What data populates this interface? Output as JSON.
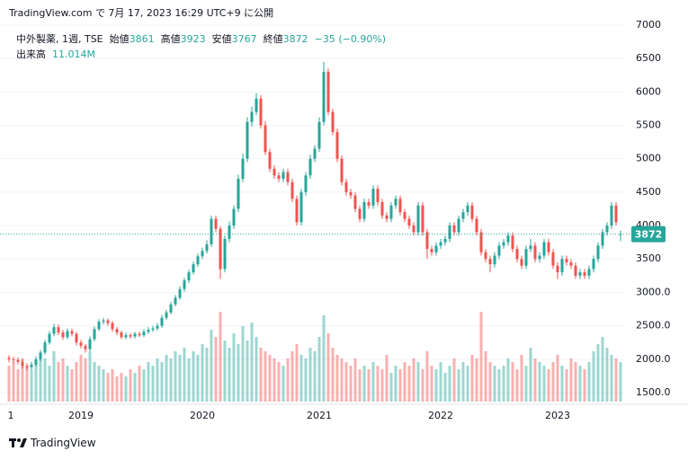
{
  "header": {
    "published": "TradingView.com で 7月 17, 2023 16:29 UTC+9 に公開",
    "symbol": "中外製薬, 1週, TSE",
    "open_label": "始値",
    "high_label": "高値",
    "low_label": "安値",
    "close_label": "終値",
    "change_text": "−35 (−0.90%)",
    "volume_title": "出来高",
    "volume_label": "11.014M",
    "logo": "TradingView"
  },
  "chart_data": {
    "type": "candlestick",
    "categories": [
      "1",
      null,
      null,
      null,
      null,
      null,
      null,
      null,
      null,
      null,
      null,
      null,
      null,
      null,
      null,
      null,
      "2019",
      null,
      null,
      null,
      null,
      null,
      null,
      null,
      null,
      null,
      null,
      null,
      null,
      null,
      null,
      null,
      null,
      null,
      null,
      null,
      null,
      null,
      null,
      null,
      null,
      null,
      null,
      "2020",
      null,
      null,
      null,
      null,
      null,
      null,
      null,
      null,
      null,
      null,
      null,
      null,
      null,
      null,
      null,
      null,
      null,
      null,
      null,
      null,
      null,
      null,
      null,
      null,
      null,
      "2021",
      null,
      null,
      null,
      null,
      null,
      null,
      null,
      null,
      null,
      null,
      null,
      null,
      null,
      null,
      null,
      null,
      null,
      null,
      null,
      null,
      null,
      null,
      null,
      null,
      null,
      null,
      "2022",
      null,
      null,
      null,
      null,
      null,
      null,
      null,
      null,
      null,
      null,
      null,
      null,
      null,
      null,
      null,
      null,
      null,
      null,
      null,
      null,
      null,
      null,
      null,
      null,
      null,
      "2023",
      null,
      null,
      null,
      null,
      null,
      null,
      null,
      null,
      null,
      null,
      null,
      null,
      null,
      null
    ],
    "open": [
      2020,
      2000,
      1990,
      1960,
      1900,
      1880,
      1920,
      2000,
      2100,
      2250,
      2380,
      2480,
      2400,
      2330,
      2420,
      2380,
      2250,
      2200,
      2150,
      2300,
      2450,
      2560,
      2580,
      2540,
      2450,
      2400,
      2330,
      2360,
      2340,
      2380,
      2360,
      2410,
      2440,
      2460,
      2500,
      2620,
      2700,
      2820,
      2920,
      3050,
      3180,
      3300,
      3420,
      3540,
      3620,
      3720,
      4100,
      3950,
      3350,
      3800,
      4000,
      4250,
      4700,
      5000,
      5550,
      5700,
      5900,
      5500,
      5100,
      4850,
      4750,
      4700,
      4800,
      4650,
      4400,
      4050,
      4500,
      4750,
      5000,
      5150,
      5550,
      6300,
      5700,
      5400,
      5000,
      4650,
      4500,
      4450,
      4250,
      4100,
      4350,
      4300,
      4550,
      4350,
      4150,
      4100,
      4300,
      4400,
      4200,
      4100,
      4000,
      3900,
      4300,
      3900,
      3650,
      3600,
      3700,
      3750,
      3800,
      4000,
      3900,
      4100,
      4200,
      4300,
      4100,
      3900,
      3600,
      3500,
      3420,
      3550,
      3700,
      3750,
      3850,
      3650,
      3500,
      3400,
      3650,
      3700,
      3500,
      3550,
      3750,
      3600,
      3400,
      3300,
      3500,
      3450,
      3400,
      3250,
      3300,
      3250,
      3350,
      3500,
      3700,
      3900,
      4000,
      4300,
      3861
    ],
    "high": [
      2060,
      2040,
      2030,
      2000,
      1940,
      1960,
      2040,
      2140,
      2290,
      2420,
      2530,
      2520,
      2440,
      2460,
      2460,
      2410,
      2290,
      2230,
      2340,
      2490,
      2600,
      2620,
      2610,
      2570,
      2480,
      2430,
      2400,
      2390,
      2410,
      2410,
      2450,
      2480,
      2500,
      2540,
      2660,
      2740,
      2860,
      2960,
      3090,
      3220,
      3340,
      3460,
      3580,
      3670,
      3780,
      4150,
      4150,
      3990,
      3850,
      4060,
      4300,
      4760,
      5080,
      5620,
      5780,
      5980,
      5950,
      5560,
      5150,
      4900,
      4800,
      4850,
      4850,
      4700,
      4450,
      4550,
      4800,
      5060,
      5200,
      5620,
      6450,
      6350,
      5750,
      5450,
      5050,
      4700,
      4550,
      4500,
      4300,
      4400,
      4400,
      4600,
      4600,
      4400,
      4200,
      4350,
      4450,
      4450,
      4250,
      4150,
      4050,
      4350,
      4350,
      3950,
      3700,
      3750,
      3800,
      3850,
      4050,
      4050,
      4150,
      4250,
      4350,
      4350,
      4150,
      3950,
      3650,
      3550,
      3600,
      3750,
      3800,
      3900,
      3900,
      3700,
      3550,
      3700,
      3800,
      3750,
      3600,
      3800,
      3800,
      3650,
      3450,
      3550,
      3550,
      3500,
      3450,
      3350,
      3350,
      3400,
      3550,
      3750,
      3950,
      4050,
      4350,
      4350,
      3923
    ],
    "low": [
      1950,
      1940,
      1920,
      1860,
      1840,
      1850,
      1890,
      1970,
      2070,
      2220,
      2340,
      2360,
      2290,
      2300,
      2340,
      2210,
      2160,
      2100,
      2120,
      2270,
      2420,
      2520,
      2500,
      2410,
      2360,
      2300,
      2300,
      2310,
      2310,
      2330,
      2330,
      2380,
      2410,
      2430,
      2470,
      2590,
      2670,
      2790,
      2890,
      3010,
      3140,
      3270,
      3380,
      3500,
      3580,
      3680,
      3900,
      3200,
      3300,
      3750,
      3950,
      4200,
      4650,
      4950,
      5480,
      5650,
      5450,
      5050,
      4800,
      4700,
      4650,
      4650,
      4600,
      4350,
      4000,
      4000,
      4450,
      4700,
      4950,
      5100,
      5500,
      5650,
      5350,
      4950,
      4600,
      4450,
      4400,
      4200,
      4050,
      4050,
      4250,
      4250,
      4300,
      4100,
      4050,
      4050,
      4250,
      4150,
      4050,
      3950,
      3850,
      3850,
      3850,
      3500,
      3550,
      3550,
      3650,
      3700,
      3750,
      3850,
      3850,
      4050,
      4150,
      4050,
      3850,
      3550,
      3450,
      3300,
      3370,
      3500,
      3650,
      3700,
      3600,
      3450,
      3350,
      3350,
      3600,
      3450,
      3450,
      3500,
      3550,
      3350,
      3200,
      3250,
      3400,
      3350,
      3200,
      3200,
      3200,
      3200,
      3300,
      3450,
      3650,
      3850,
      3950,
      4000,
      3767
    ],
    "close": [
      2000,
      1990,
      1960,
      1900,
      1880,
      1920,
      2000,
      2100,
      2250,
      2380,
      2480,
      2400,
      2330,
      2420,
      2380,
      2250,
      2200,
      2150,
      2300,
      2450,
      2560,
      2580,
      2540,
      2450,
      2400,
      2330,
      2360,
      2340,
      2380,
      2360,
      2410,
      2440,
      2460,
      2500,
      2620,
      2700,
      2820,
      2920,
      3050,
      3180,
      3300,
      3420,
      3540,
      3620,
      3720,
      4100,
      3950,
      3350,
      3800,
      4000,
      4250,
      4700,
      5000,
      5550,
      5700,
      5900,
      5500,
      5100,
      4850,
      4750,
      4700,
      4800,
      4650,
      4400,
      4050,
      4500,
      4750,
      5000,
      5150,
      5550,
      6300,
      5700,
      5400,
      5000,
      4650,
      4500,
      4450,
      4250,
      4100,
      4350,
      4300,
      4550,
      4350,
      4150,
      4100,
      4300,
      4400,
      4200,
      4100,
      4000,
      3900,
      4300,
      3900,
      3650,
      3600,
      3700,
      3750,
      3800,
      4000,
      3900,
      4100,
      4200,
      4300,
      4100,
      3900,
      3600,
      3500,
      3420,
      3550,
      3700,
      3750,
      3850,
      3650,
      3500,
      3400,
      3650,
      3700,
      3500,
      3550,
      3750,
      3600,
      3400,
      3300,
      3500,
      3450,
      3400,
      3250,
      3300,
      3250,
      3350,
      3500,
      3700,
      3900,
      4000,
      4300,
      4050,
      3872
    ],
    "volume": [
      10,
      11,
      9,
      12,
      10,
      9,
      11,
      13,
      12,
      10,
      14,
      11,
      12,
      10,
      9,
      11,
      13,
      12,
      14,
      11,
      10,
      9,
      8,
      9,
      7,
      8,
      7,
      9,
      8,
      10,
      9,
      11,
      10,
      12,
      11,
      13,
      12,
      14,
      13,
      15,
      12,
      14,
      13,
      16,
      15,
      20,
      18,
      25,
      17,
      15,
      19,
      16,
      21,
      17,
      22,
      18,
      15,
      14,
      13,
      12,
      11,
      10,
      12,
      14,
      16,
      13,
      12,
      15,
      14,
      18,
      24,
      19,
      15,
      13,
      12,
      11,
      10,
      12,
      9,
      10,
      9,
      11,
      10,
      9,
      13,
      8,
      10,
      9,
      11,
      10,
      12,
      11,
      9,
      14,
      10,
      9,
      11,
      8,
      10,
      12,
      9,
      11,
      10,
      13,
      12,
      25,
      14,
      11,
      10,
      9,
      10,
      12,
      11,
      9,
      13,
      10,
      15,
      12,
      11,
      10,
      9,
      11,
      13,
      10,
      9,
      12,
      11,
      10,
      9,
      11,
      14,
      16,
      18,
      15,
      13,
      12,
      11.014
    ],
    "up_color": "#26a69a",
    "down_color": "#ef5350",
    "ylim": [
      1366,
      7025
    ],
    "yticks": [
      {
        "value": 1500,
        "label": "1500.0"
      },
      {
        "value": 2000,
        "label": "2000.0"
      },
      {
        "value": 2500,
        "label": "2500.0"
      },
      {
        "value": 3000,
        "label": "3000.0"
      },
      3500,
      4000,
      4500,
      5000,
      5500,
      6000,
      6500,
      7000
    ],
    "grid": true
  }
}
